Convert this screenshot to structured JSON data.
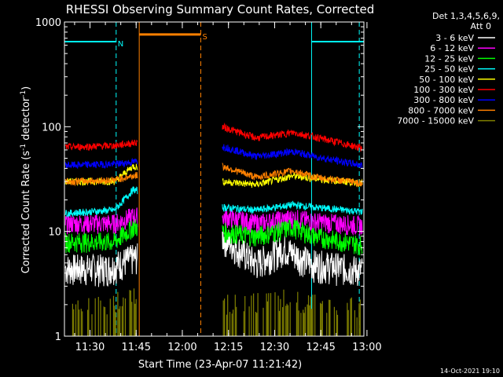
{
  "chart_data": {
    "type": "line",
    "title": "RHESSI Observing Summary Count Rates, Corrected",
    "xlabel": "Start Time (23-Apr-07 11:21:42)",
    "ylabel_main": "Corrected Count Rate (s",
    "ylabel_sup1": "-1",
    "ylabel_mid": " detector",
    "ylabel_sup2": "-1",
    "ylabel_end": ")",
    "y_scale": "log",
    "ylim": [
      1,
      1000
    ],
    "xlim": [
      "11:21:42",
      "12:59:00"
    ],
    "x_ticks": [
      "11:30",
      "11:45",
      "12:00",
      "12:15",
      "12:30",
      "12:45",
      "13:00"
    ],
    "y_ticks": [
      "1",
      "10",
      "100",
      "1000"
    ],
    "legend_header": [
      "Det 1,3,4,5,6,9,",
      "Att 0"
    ],
    "legend_position": "right",
    "timestamp": "14-Oct-2021 19:10",
    "flags": [
      {
        "label": "N",
        "color": "#00ffff",
        "from": "11:21:42",
        "to": "11:38:30",
        "value": 650
      },
      {
        "label": "",
        "color": "#00ffff",
        "from": "12:42:00",
        "to": "12:59:00",
        "value": 650
      },
      {
        "label": "S",
        "color": "#ff8000",
        "from": "11:46:00",
        "to": "12:06:00",
        "value": 760
      }
    ],
    "markers": [
      {
        "color": "#00ffff",
        "time": "11:38:30",
        "style": "dashed"
      },
      {
        "color": "#00ffff",
        "time": "12:42:00",
        "style": "solid"
      },
      {
        "color": "#00ffff",
        "time": "12:57:30",
        "style": "dashed"
      },
      {
        "color": "#ff8000",
        "time": "11:46:00",
        "style": "solid"
      },
      {
        "color": "#ff8000",
        "time": "12:06:00",
        "style": "dashed"
      }
    ],
    "series": [
      {
        "name": "3 - 6 keV",
        "color": "#ffffff",
        "times": [
          "11:24",
          "11:36",
          "11:43",
          "12:13",
          "12:24",
          "12:33",
          "12:42",
          "12:58"
        ],
        "values": [
          4.5,
          4.5,
          5.5,
          9,
          5,
          7,
          5,
          4.3
        ]
      },
      {
        "name": "6 - 12 keV",
        "color": "#ff00ff",
        "times": [
          "11:24",
          "11:38",
          "11:44",
          "12:13",
          "12:24",
          "12:36",
          "12:43",
          "12:58"
        ],
        "values": [
          12,
          12,
          14,
          14,
          12,
          13.5,
          12.5,
          11.5
        ]
      },
      {
        "name": "12 - 25 keV",
        "color": "#00ff00",
        "times": [
          "11:24",
          "11:38",
          "11:44",
          "12:13",
          "12:24",
          "12:36",
          "12:43",
          "12:58"
        ],
        "values": [
          8,
          8,
          11,
          10,
          9,
          11,
          9,
          7.5
        ]
      },
      {
        "name": "25 - 50 keV",
        "color": "#00ffff",
        "times": [
          "11:24",
          "11:38",
          "11:44",
          "12:13",
          "12:24",
          "12:36",
          "12:43",
          "12:58"
        ],
        "values": [
          15,
          16,
          25,
          17,
          16,
          18,
          17,
          15.5
        ]
      },
      {
        "name": "50 - 100 keV",
        "color": "#ffff00",
        "times": [
          "11:24",
          "11:38",
          "11:44",
          "12:13",
          "12:24",
          "12:36",
          "12:43",
          "12:58"
        ],
        "values": [
          30,
          30,
          42,
          30,
          28,
          34,
          32,
          29
        ]
      },
      {
        "name": "100 - 300 keV",
        "color": "#ff0000",
        "times": [
          "11:24",
          "11:38",
          "11:44",
          "12:13",
          "12:24",
          "12:36",
          "12:43",
          "12:58"
        ],
        "values": [
          64,
          66,
          70,
          100,
          78,
          88,
          80,
          63
        ]
      },
      {
        "name": "300 - 800 keV",
        "color": "#0000ff",
        "times": [
          "11:24",
          "11:38",
          "11:44",
          "12:13",
          "12:24",
          "12:36",
          "12:43",
          "12:58"
        ],
        "values": [
          43,
          44,
          46,
          65,
          52,
          58,
          52,
          43
        ]
      },
      {
        "name": "800 - 7000 keV",
        "color": "#ff8000",
        "times": [
          "11:24",
          "11:38",
          "11:44",
          "12:13",
          "12:24",
          "12:36",
          "12:43",
          "12:58"
        ],
        "values": [
          30,
          31,
          34,
          42,
          33,
          38,
          33,
          29
        ]
      },
      {
        "name": "7000 - 15000 keV",
        "color": "#808000",
        "times": [
          "11:24",
          "11:36",
          "11:44",
          "12:13",
          "12:24",
          "12:33",
          "12:42",
          "12:58"
        ],
        "values": [
          1.8,
          2,
          2.2,
          2,
          2,
          2.2,
          2,
          1.8
        ]
      }
    ]
  }
}
